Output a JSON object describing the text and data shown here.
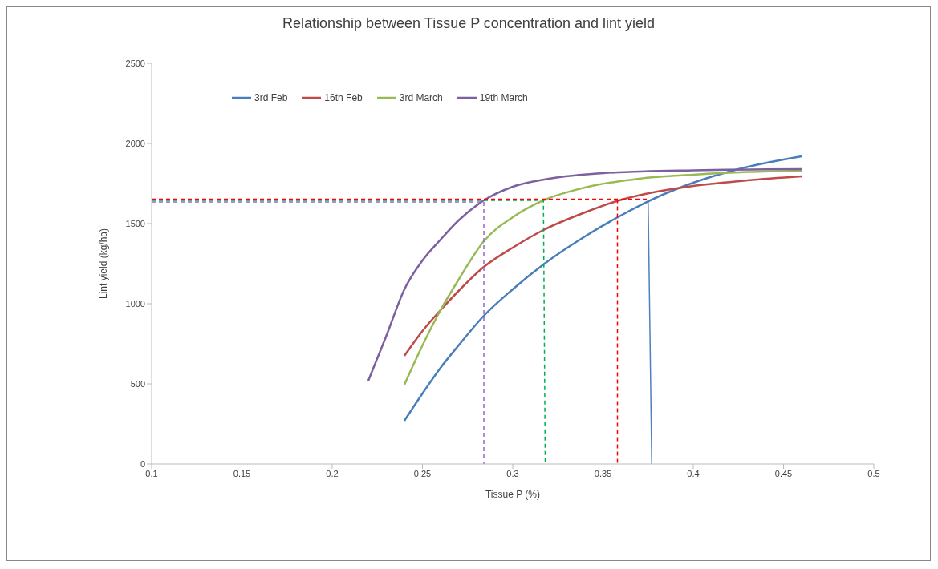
{
  "chart_data": {
    "type": "line",
    "title": "Relationship between Tissue P concentration and lint yield",
    "xlabel": "Tissue P (%)",
    "ylabel": "Lint yield (kg/ha)",
    "xlim": [
      0.1,
      0.5
    ],
    "xticks": [
      0.1,
      0.15,
      0.2,
      0.25,
      0.3,
      0.35,
      0.4,
      0.45,
      0.5
    ],
    "ylim": [
      0,
      2500
    ],
    "yticks": [
      0,
      500,
      1000,
      1500,
      2000,
      2500
    ],
    "grid": false,
    "legend": "top left",
    "marker": "none",
    "line_style": "solid",
    "series": [
      {
        "name": "3rd Feb",
        "color": "#4a7ebb",
        "x": [
          0.24,
          0.25,
          0.26,
          0.27,
          0.284,
          0.3,
          0.317,
          0.34,
          0.359,
          0.38,
          0.4,
          0.425,
          0.46
        ],
        "values": [
          270,
          440,
          600,
          740,
          925,
          1090,
          1245,
          1420,
          1545,
          1665,
          1755,
          1840,
          1920
        ]
      },
      {
        "name": "16th Feb",
        "color": "#be4b48",
        "x": [
          0.24,
          0.25,
          0.26,
          0.27,
          0.284,
          0.3,
          0.317,
          0.34,
          0.359,
          0.38,
          0.4,
          0.43,
          0.46
        ],
        "values": [
          675,
          830,
          960,
          1080,
          1230,
          1350,
          1460,
          1570,
          1645,
          1700,
          1735,
          1770,
          1795
        ]
      },
      {
        "name": "3rd March",
        "color": "#98b954",
        "x": [
          0.24,
          0.25,
          0.26,
          0.27,
          0.284,
          0.3,
          0.317,
          0.34,
          0.37,
          0.4,
          0.43,
          0.46
        ],
        "values": [
          495,
          740,
          960,
          1150,
          1390,
          1540,
          1645,
          1725,
          1780,
          1805,
          1822,
          1830
        ]
      },
      {
        "name": "19th March",
        "color": "#7d60a0",
        "x": [
          0.22,
          0.23,
          0.24,
          0.25,
          0.26,
          0.27,
          0.284,
          0.3,
          0.32,
          0.35,
          0.4,
          0.46
        ],
        "values": [
          520,
          800,
          1090,
          1270,
          1400,
          1520,
          1645,
          1730,
          1780,
          1815,
          1833,
          1840
        ]
      },
      {
        "color": "#ff0000",
        "line_style": "dashed",
        "x": [
          0.1,
          0.375
        ],
        "values": [
          1652,
          1652
        ]
      },
      {
        "color": "#ff0000",
        "line_style": "dashed",
        "x": [
          0.358,
          0.358
        ],
        "values": [
          1652,
          0
        ]
      },
      {
        "color": "#00b050",
        "line_style": "dashed",
        "x": [
          0.1,
          0.317,
          0.318
        ],
        "values": [
          1645,
          1645,
          0
        ]
      },
      {
        "color": "#9966cc",
        "line_style": "dashed",
        "x": [
          0.1,
          0.284,
          0.284
        ],
        "values": [
          1635,
          1635,
          0
        ]
      },
      {
        "color": "#4f81bd",
        "line_style": "solid",
        "x": [
          0.375,
          0.377
        ],
        "values": [
          1640,
          0
        ]
      }
    ]
  }
}
